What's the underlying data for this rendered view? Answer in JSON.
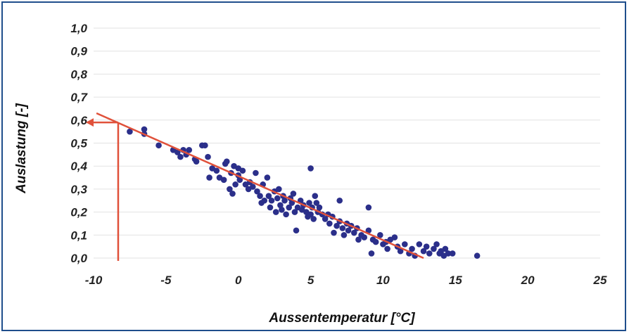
{
  "chart_data": {
    "type": "scatter",
    "title": "",
    "xlabel": "Aussentemperatur [°C]",
    "ylabel": "Auslastung [-]",
    "xlim": [
      -10,
      25
    ],
    "ylim": [
      0.0,
      1.0
    ],
    "x_ticks": [
      "-10",
      "-5",
      "0",
      "5",
      "10",
      "15",
      "20",
      "25"
    ],
    "y_ticks": [
      "0,0",
      "0,1",
      "0,2",
      "0,3",
      "0,4",
      "0,5",
      "0,6",
      "0,7",
      "0,8",
      "0,9",
      "1,0"
    ],
    "grid": true,
    "colors": {
      "points": "#2b2f8a",
      "trend": "#e0513a",
      "frame": "#1f4e8c",
      "grid": "#e2e2e2"
    },
    "series": [
      {
        "type": "scatter",
        "points": [
          [
            -7.5,
            0.55
          ],
          [
            -6.5,
            0.56
          ],
          [
            -6.5,
            0.54
          ],
          [
            -5.5,
            0.49
          ],
          [
            -4.5,
            0.47
          ],
          [
            -4.2,
            0.46
          ],
          [
            -4.0,
            0.44
          ],
          [
            -3.8,
            0.47
          ],
          [
            -3.6,
            0.45
          ],
          [
            -3.4,
            0.47
          ],
          [
            -3.0,
            0.43
          ],
          [
            -2.9,
            0.42
          ],
          [
            -2.5,
            0.49
          ],
          [
            -2.3,
            0.49
          ],
          [
            -2.1,
            0.44
          ],
          [
            -2.0,
            0.35
          ],
          [
            -1.8,
            0.39
          ],
          [
            -1.5,
            0.38
          ],
          [
            -1.3,
            0.35
          ],
          [
            -1.0,
            0.34
          ],
          [
            -0.9,
            0.41
          ],
          [
            -0.8,
            0.42
          ],
          [
            -0.6,
            0.3
          ],
          [
            -0.5,
            0.37
          ],
          [
            -0.4,
            0.28
          ],
          [
            -0.3,
            0.4
          ],
          [
            -0.2,
            0.32
          ],
          [
            0.0,
            0.36
          ],
          [
            0.0,
            0.39
          ],
          [
            0.1,
            0.34
          ],
          [
            0.3,
            0.38
          ],
          [
            0.5,
            0.32
          ],
          [
            0.7,
            0.3
          ],
          [
            0.8,
            0.33
          ],
          [
            1.0,
            0.31
          ],
          [
            1.2,
            0.37
          ],
          [
            1.3,
            0.29
          ],
          [
            1.5,
            0.27
          ],
          [
            1.6,
            0.24
          ],
          [
            1.7,
            0.32
          ],
          [
            1.8,
            0.25
          ],
          [
            2.0,
            0.35
          ],
          [
            2.1,
            0.27
          ],
          [
            2.2,
            0.22
          ],
          [
            2.3,
            0.25
          ],
          [
            2.5,
            0.29
          ],
          [
            2.6,
            0.2
          ],
          [
            2.7,
            0.26
          ],
          [
            2.8,
            0.3
          ],
          [
            2.9,
            0.23
          ],
          [
            3.0,
            0.21
          ],
          [
            3.1,
            0.27
          ],
          [
            3.2,
            0.25
          ],
          [
            3.3,
            0.19
          ],
          [
            3.5,
            0.22
          ],
          [
            3.6,
            0.26
          ],
          [
            3.7,
            0.24
          ],
          [
            3.8,
            0.28
          ],
          [
            3.9,
            0.2
          ],
          [
            4.0,
            0.12
          ],
          [
            4.1,
            0.22
          ],
          [
            4.3,
            0.25
          ],
          [
            4.4,
            0.21
          ],
          [
            4.5,
            0.23
          ],
          [
            4.7,
            0.2
          ],
          [
            4.8,
            0.18
          ],
          [
            4.9,
            0.24
          ],
          [
            5.0,
            0.19
          ],
          [
            5.0,
            0.39
          ],
          [
            5.1,
            0.22
          ],
          [
            5.2,
            0.17
          ],
          [
            5.3,
            0.27
          ],
          [
            5.4,
            0.24
          ],
          [
            5.5,
            0.2
          ],
          [
            5.6,
            0.22
          ],
          [
            5.8,
            0.19
          ],
          [
            6.0,
            0.17
          ],
          [
            6.2,
            0.19
          ],
          [
            6.3,
            0.15
          ],
          [
            6.5,
            0.18
          ],
          [
            6.6,
            0.11
          ],
          [
            6.8,
            0.14
          ],
          [
            7.0,
            0.16
          ],
          [
            7.0,
            0.25
          ],
          [
            7.2,
            0.13
          ],
          [
            7.3,
            0.1
          ],
          [
            7.5,
            0.15
          ],
          [
            7.6,
            0.12
          ],
          [
            7.8,
            0.14
          ],
          [
            8.0,
            0.11
          ],
          [
            8.2,
            0.13
          ],
          [
            8.3,
            0.08
          ],
          [
            8.5,
            0.1
          ],
          [
            8.7,
            0.09
          ],
          [
            9.0,
            0.12
          ],
          [
            9.0,
            0.22
          ],
          [
            9.2,
            0.02
          ],
          [
            9.3,
            0.08
          ],
          [
            9.5,
            0.07
          ],
          [
            9.8,
            0.1
          ],
          [
            10.0,
            0.06
          ],
          [
            10.2,
            0.07
          ],
          [
            10.3,
            0.04
          ],
          [
            10.5,
            0.08
          ],
          [
            10.8,
            0.09
          ],
          [
            11.0,
            0.05
          ],
          [
            11.2,
            0.03
          ],
          [
            11.5,
            0.06
          ],
          [
            11.8,
            0.02
          ],
          [
            12.0,
            0.04
          ],
          [
            12.2,
            0.01
          ],
          [
            12.5,
            0.06
          ],
          [
            12.8,
            0.03
          ],
          [
            13.0,
            0.05
          ],
          [
            13.2,
            0.02
          ],
          [
            13.5,
            0.04
          ],
          [
            13.7,
            0.06
          ],
          [
            13.9,
            0.02
          ],
          [
            14.0,
            0.03
          ],
          [
            14.2,
            0.01
          ],
          [
            14.3,
            0.04
          ],
          [
            14.5,
            0.02
          ],
          [
            14.8,
            0.02
          ],
          [
            16.5,
            0.01
          ]
        ]
      }
    ],
    "trendline": {
      "x": [
        -9.8,
        12.8
      ],
      "y": [
        0.63,
        0.0
      ]
    },
    "annotation_arrow": {
      "x": -8.3,
      "y": 0.59
    }
  }
}
